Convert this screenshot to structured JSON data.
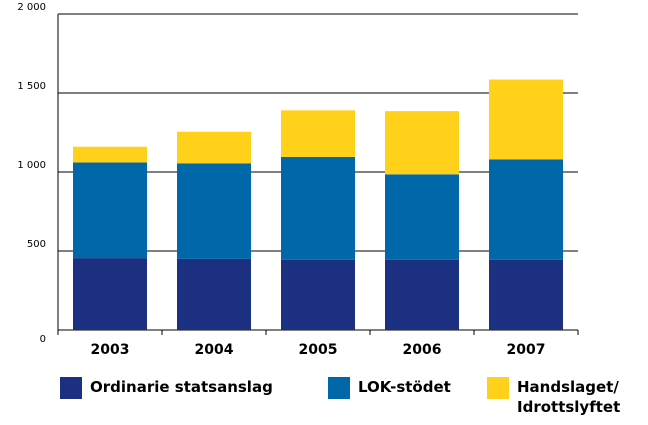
{
  "chart_data": {
    "type": "stacked_bar",
    "categories": [
      "2003",
      "2004",
      "2005",
      "2006",
      "2007"
    ],
    "series": [
      {
        "name": "Ordinarie statsanslag",
        "color": "#1b3080",
        "values": [
          455,
          450,
          445,
          445,
          445
        ]
      },
      {
        "name": "LOK-stödet",
        "color": "#0068a8",
        "values": [
          605,
          605,
          650,
          540,
          635
        ]
      },
      {
        "name": "Handslaget/ Idrottslyftet",
        "color": "#ffd11a",
        "values": [
          100,
          200,
          295,
          400,
          505
        ]
      }
    ],
    "ylim": [
      0,
      2000
    ],
    "yticks": [
      0,
      500,
      {
        "value": 1000,
        "label": "1 000"
      },
      {
        "value": 1500,
        "label": "1 500"
      },
      {
        "value": 2000,
        "label": "2 000"
      }
    ],
    "grid": true
  }
}
